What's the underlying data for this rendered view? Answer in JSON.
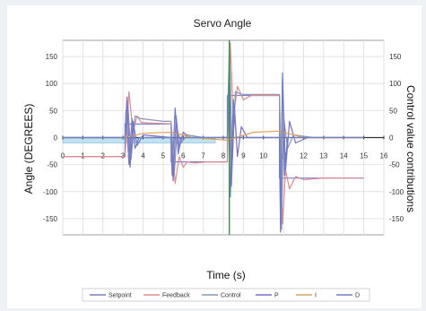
{
  "chart_data": {
    "type": "line",
    "title": "Servo Angle",
    "xlabel": "Time (s)",
    "ylabel": "Angle (DEGREES)",
    "ylabel_right": "Control value contributions",
    "xlim": [
      0,
      16
    ],
    "ylim": [
      -180,
      180
    ],
    "y2lim": [
      -180,
      180
    ],
    "x_ticks": [
      "0",
      "1",
      "2",
      "3",
      "4",
      "5",
      "6",
      "7",
      "8",
      "9",
      "10",
      "11",
      "12",
      "13",
      "14",
      "15",
      "16"
    ],
    "y_ticks": [
      150,
      100,
      50,
      0,
      -50,
      -100,
      -150
    ],
    "y2_ticks": [
      150,
      100,
      50,
      0,
      -50,
      -100,
      -150
    ],
    "grid": true,
    "legend_position": "bottom",
    "colors": {
      "setpoint": "#7b7fd0",
      "feedback": "#e08a8a",
      "control": "#8a96b0",
      "p": "#7e6cc8",
      "i": "#e0a45a",
      "d": "#6a80c8",
      "highlight_band": "#bfe3f2",
      "marker_line": "#2e9e3e"
    },
    "marker_x": 8.3,
    "highlight_band": {
      "x_from": 0,
      "x_to": 7.6,
      "y_from": -10,
      "y_to": 0
    },
    "series": [
      {
        "name": "Setpoint",
        "x": [
          0,
          3.1,
          3.1,
          5.4,
          5.4,
          8.2,
          8.2,
          10.8,
          10.8,
          15
        ],
        "y": [
          -35,
          -35,
          25,
          25,
          -45,
          -45,
          78,
          78,
          -75,
          -75
        ]
      },
      {
        "name": "Feedback",
        "x": [
          0,
          3.1,
          3.3,
          3.5,
          3.7,
          3.9,
          4.3,
          5.0,
          5.4,
          5.6,
          5.8,
          6.0,
          6.2,
          6.6,
          7.2,
          8.2,
          8.35,
          8.5,
          8.7,
          9.0,
          9.4,
          10.0,
          10.8,
          10.95,
          11.1,
          11.3,
          11.6,
          12.0,
          13,
          15
        ],
        "y": [
          -35,
          -35,
          85,
          10,
          40,
          28,
          27,
          26,
          25,
          -85,
          -35,
          -55,
          -45,
          -47,
          -45,
          -45,
          175,
          35,
          95,
          70,
          78,
          78,
          78,
          -160,
          -60,
          -95,
          -72,
          -78,
          -75,
          -75
        ]
      },
      {
        "name": "Control",
        "x": [
          0,
          3.1,
          3.25,
          3.4,
          3.6,
          3.9,
          5.0,
          5.4,
          5.55,
          5.7,
          5.9,
          6.2,
          7.0,
          8.2,
          8.3,
          8.45,
          8.6,
          8.9,
          9.5,
          10.8,
          10.9,
          11.0,
          11.2,
          11.5,
          12.5,
          15
        ],
        "y": [
          0,
          0,
          60,
          -40,
          40,
          35,
          30,
          30,
          -70,
          15,
          -10,
          5,
          0,
          0,
          175,
          -40,
          85,
          80,
          80,
          80,
          -170,
          40,
          -20,
          5,
          0,
          0
        ]
      },
      {
        "name": "P",
        "x": [
          0,
          3.1,
          3.2,
          3.35,
          3.5,
          3.7,
          4.0,
          5.4,
          5.5,
          5.65,
          5.8,
          6.0,
          6.3,
          8.2,
          8.3,
          8.4,
          8.55,
          8.7,
          8.9,
          9.2,
          10.8,
          10.85,
          10.95,
          11.1,
          11.3,
          11.6,
          12.2,
          15
        ],
        "y": [
          0,
          0,
          75,
          -55,
          30,
          -15,
          5,
          0,
          -80,
          40,
          -20,
          10,
          0,
          0,
          120,
          -90,
          60,
          -35,
          20,
          0,
          0,
          -175,
          110,
          -60,
          30,
          -10,
          0,
          0
        ]
      },
      {
        "name": "I",
        "x": [
          0,
          3.1,
          4.0,
          5.4,
          6.5,
          8.2,
          9.5,
          10.8,
          12.0,
          15
        ],
        "y": [
          0,
          0,
          8,
          10,
          0,
          -5,
          10,
          12,
          0,
          0
        ]
      },
      {
        "name": "D",
        "x": [
          0,
          3.1,
          3.15,
          3.3,
          3.45,
          3.6,
          3.8,
          5.4,
          5.45,
          5.6,
          5.75,
          5.9,
          8.2,
          8.25,
          8.35,
          8.5,
          8.65,
          10.8,
          10.85,
          10.95,
          11.05,
          11.2,
          15
        ],
        "y": [
          0,
          0,
          50,
          -50,
          35,
          -20,
          0,
          0,
          -70,
          55,
          -30,
          0,
          0,
          95,
          -110,
          70,
          0,
          0,
          -150,
          120,
          -70,
          0,
          0
        ]
      }
    ],
    "legend": [
      "Setpoint",
      "Feedback",
      "Control",
      "P",
      "I",
      "D"
    ]
  }
}
